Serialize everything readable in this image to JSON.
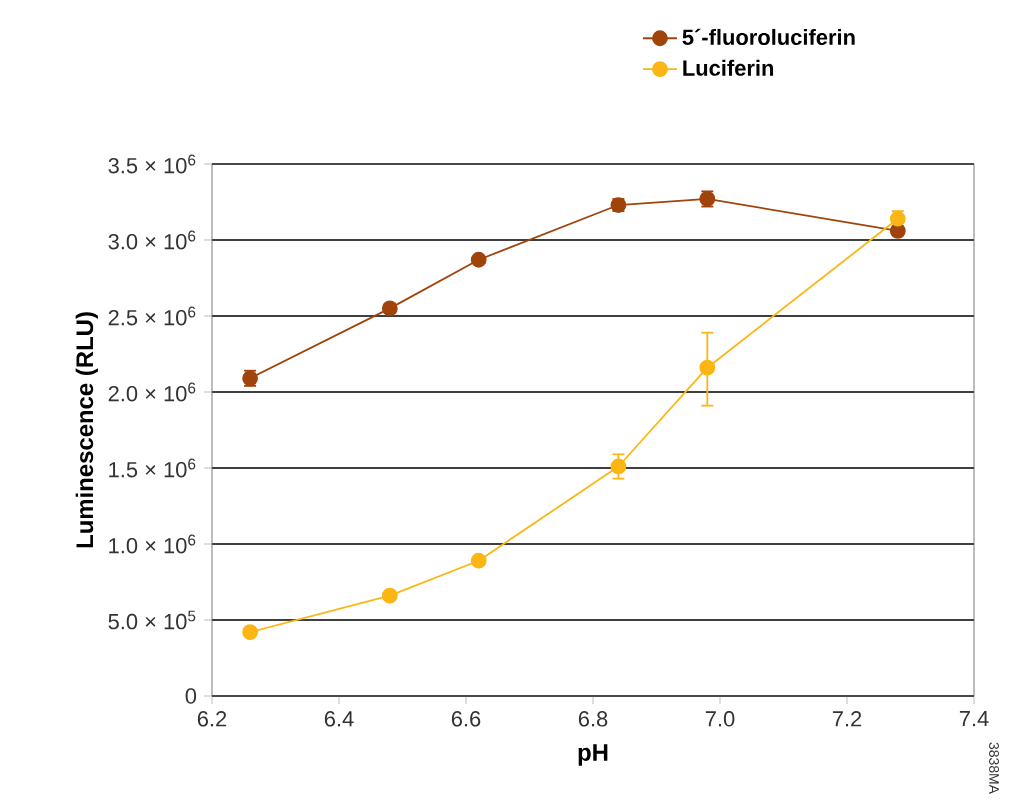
{
  "chart_data": {
    "type": "line",
    "xlabel": "pH",
    "ylabel": "Luminescence (RLU)",
    "x": [
      6.26,
      6.48,
      6.62,
      6.84,
      6.98,
      7.28
    ],
    "series": [
      {
        "name": "5´-fluoroluciferin",
        "color": "#a0440c",
        "values": [
          2090000,
          2550000,
          2870000,
          3230000,
          3270000,
          3060000
        ],
        "errors": [
          50000,
          30000,
          20000,
          40000,
          50000,
          30000
        ]
      },
      {
        "name": "Luciferin",
        "color": "#fbb614",
        "values": [
          420000,
          660000,
          890000,
          1510000,
          2160000,
          3140000
        ],
        "errors": [
          null,
          null,
          null,
          80000,
          [
            1910000,
            2390000
          ],
          50000
        ]
      }
    ],
    "xlim": [
      6.2,
      7.4
    ],
    "xticks": [
      6.2,
      6.4,
      6.6,
      6.8,
      {
        "value": 7.0,
        "label": "7.0"
      },
      7.2,
      7.4
    ],
    "ylim": [
      0,
      3500000
    ],
    "yticks": [
      {
        "value": 0,
        "label": "0"
      },
      {
        "value": 500000,
        "label": "5.0 × 10$^{5}$"
      },
      {
        "value": 1000000,
        "label": "1.0 × 10$^{6}$"
      },
      {
        "value": 1500000,
        "label": "1.5 × 10$^{6}$"
      },
      {
        "value": 2000000,
        "label": "2.0 × 10$^{6}$"
      },
      {
        "value": 2500000,
        "label": "2.5 × 10$^{6}$"
      },
      {
        "value": 3000000,
        "label": "3.0 × 10$^{6}$"
      },
      {
        "value": 3500000,
        "label": "3.5 × 10$^{6}$"
      }
    ],
    "grid": "y",
    "legend": "top right",
    "marker": "circle",
    "line_style": "solid",
    "annotations": [
      "3838MA"
    ]
  }
}
